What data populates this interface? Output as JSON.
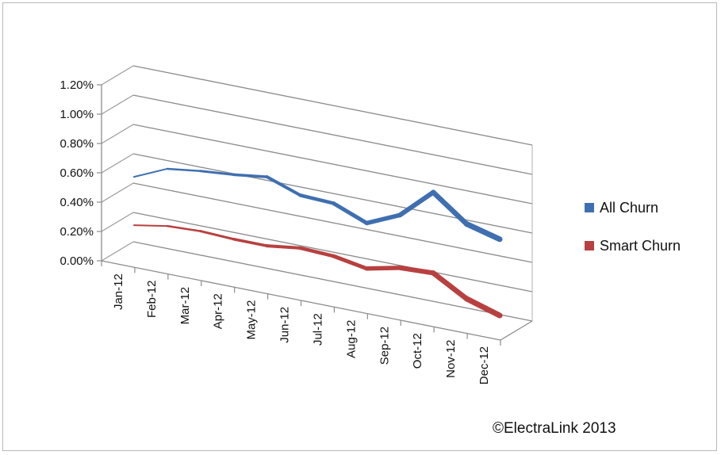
{
  "chart_data": {
    "type": "line",
    "title": "",
    "xlabel": "",
    "ylabel": "",
    "categories": [
      "Jan-12",
      "Feb-12",
      "Mar-12",
      "Apr-12",
      "May-12",
      "Jun-12",
      "Jul-12",
      "Aug-12",
      "Sep-12",
      "Oct-12",
      "Nov-12",
      "Dec-12"
    ],
    "yticks": [
      "0.00%",
      "0.20%",
      "0.40%",
      "0.60%",
      "0.80%",
      "1.00%",
      "1.20%"
    ],
    "ylim": [
      0,
      1.2
    ],
    "series": [
      {
        "name": "All Churn",
        "color": "#3f6fb0",
        "values": [
          0.53,
          0.63,
          0.66,
          0.68,
          0.71,
          0.63,
          0.62,
          0.53,
          0.63,
          0.83,
          0.66,
          0.6
        ]
      },
      {
        "name": "Smart Churn",
        "color": "#b84040",
        "values": [
          0.2,
          0.24,
          0.25,
          0.24,
          0.24,
          0.27,
          0.26,
          0.22,
          0.27,
          0.28,
          0.15,
          0.08
        ]
      }
    ],
    "legend_position": "right",
    "grid": true,
    "perspective": "3d"
  },
  "footer": {
    "copyright": "©ElectraLink 2013"
  }
}
